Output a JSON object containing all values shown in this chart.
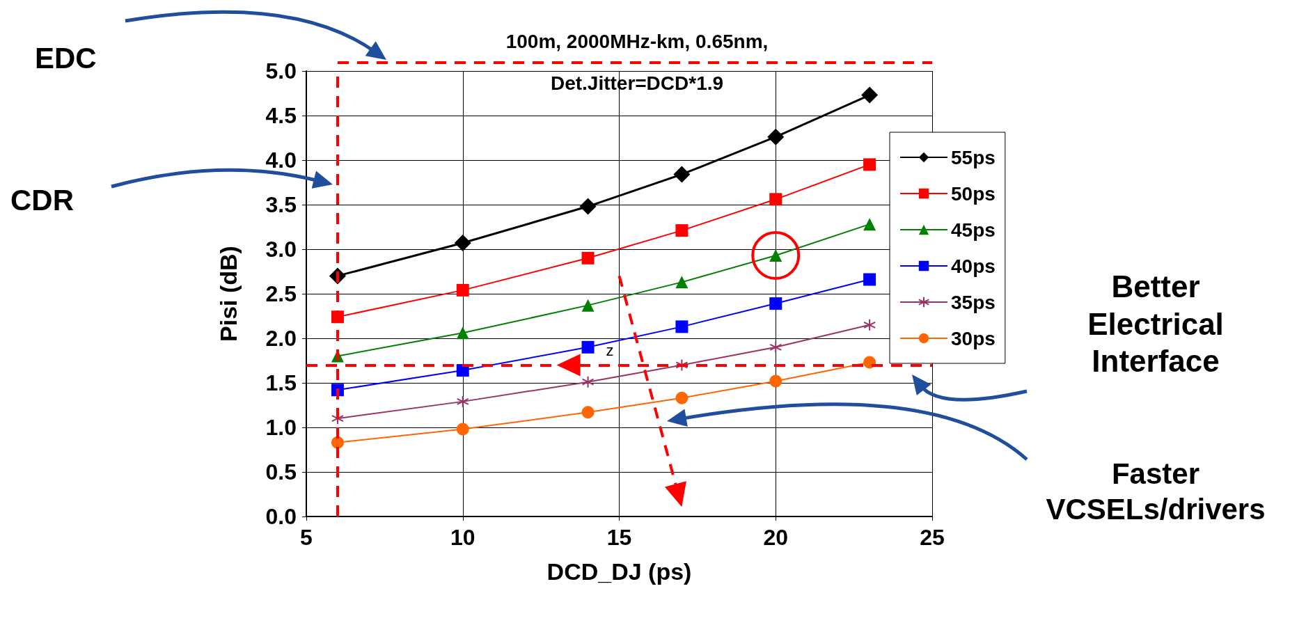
{
  "chart_data": {
    "type": "line",
    "title": "100m, 2000MHz-km, 0.65nm,",
    "subtitle": "Det.Jitter=DCD*1.9",
    "xlabel": "DCD_DJ (ps)",
    "ylabel": "Pisi (dB)",
    "x": [
      6,
      10,
      14,
      17,
      20,
      23
    ],
    "series": [
      {
        "name": "55ps",
        "color": "#000000",
        "marker": "diamond",
        "values": [
          2.7,
          3.07,
          3.48,
          3.84,
          4.26,
          4.73
        ]
      },
      {
        "name": "50ps",
        "color": "#ff0000",
        "marker": "square",
        "values": [
          2.24,
          2.54,
          2.9,
          3.21,
          3.56,
          3.95
        ]
      },
      {
        "name": "45ps",
        "color": "#008000",
        "marker": "triangle",
        "values": [
          1.8,
          2.06,
          2.37,
          2.63,
          2.93,
          3.28
        ]
      },
      {
        "name": "40ps",
        "color": "#0000ff",
        "marker": "square",
        "values": [
          1.42,
          1.64,
          1.9,
          2.13,
          2.39,
          2.66
        ]
      },
      {
        "name": "35ps",
        "color": "#993366",
        "marker": "cross",
        "values": [
          1.1,
          1.29,
          1.51,
          1.7,
          1.9,
          2.15
        ]
      },
      {
        "name": "30ps",
        "color": "#ff6600",
        "marker": "circle",
        "values": [
          0.83,
          0.98,
          1.17,
          1.33,
          1.52,
          1.73
        ]
      }
    ],
    "xlim": [
      5,
      25
    ],
    "xticks": [
      5,
      10,
      15,
      20,
      25
    ],
    "ylim": [
      0,
      5
    ],
    "yticks": [
      {
        "value": 0,
        "label": "0.0"
      },
      {
        "value": 0.5,
        "label": "0.5"
      },
      {
        "value": 1,
        "label": "1.0"
      },
      {
        "value": 1.5,
        "label": "1.5"
      },
      {
        "value": 2,
        "label": "2.0"
      },
      {
        "value": 2.5,
        "label": "2.5"
      },
      {
        "value": 3,
        "label": "3.0"
      },
      {
        "value": 3.5,
        "label": "3.5"
      },
      {
        "value": 4,
        "label": "4.0"
      },
      {
        "value": 4.5,
        "label": "4.5"
      },
      {
        "value": 5,
        "label": "5.0"
      }
    ],
    "ref_lines": [
      {
        "axis": "x",
        "value": 6,
        "color": "#ff0000",
        "line_style": "dashed"
      },
      {
        "axis": "y",
        "value": 1.7,
        "color": "#ff0000",
        "line_style": "dashed"
      }
    ],
    "annotations": [
      "EDC",
      "CDR",
      "Better Electrical Interface",
      "Faster VCSELs/drivers",
      {
        "text": "z",
        "x": 14,
        "y": 1.9
      }
    ],
    "grid": true,
    "legend": "right",
    "line_style": "solid"
  }
}
